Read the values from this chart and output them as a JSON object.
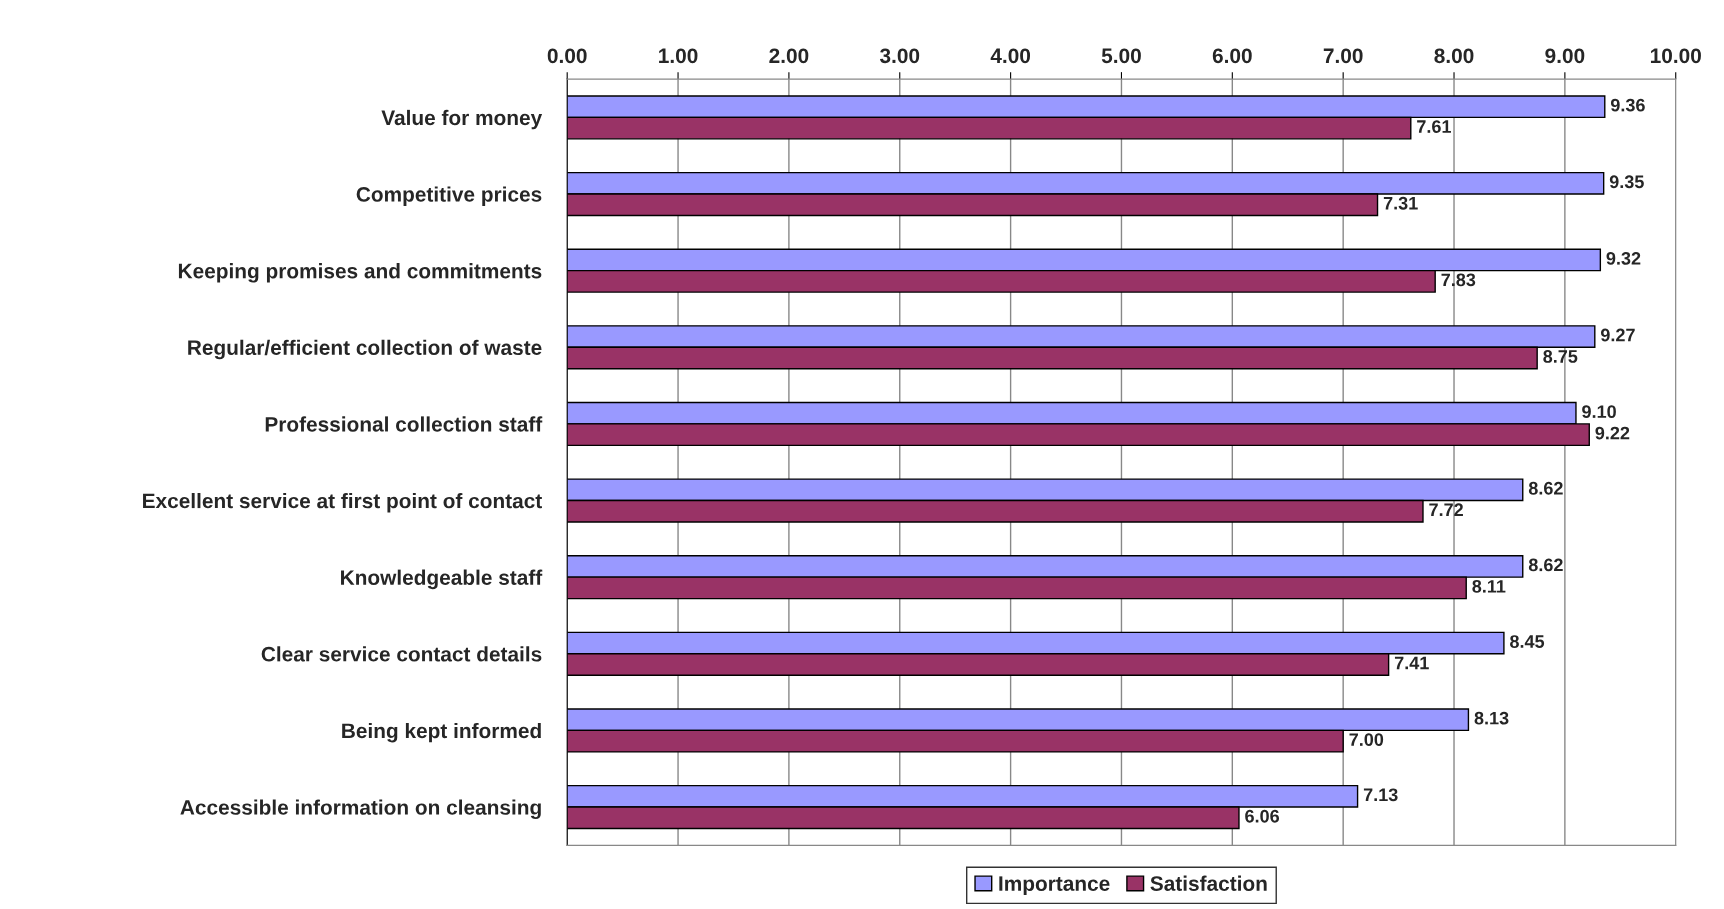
{
  "chart_data": {
    "type": "bar",
    "orientation": "horizontal",
    "categories": [
      "Value for money",
      "Competitive prices",
      "Keeping promises and commitments",
      "Regular/efficient collection of waste",
      "Professional collection staff",
      "Excellent service at first point of contact",
      "Knowledgeable staff",
      "Clear service contact details",
      "Being kept informed",
      "Accessible information on cleansing"
    ],
    "series": [
      {
        "name": "Importance",
        "color": "#9999ff",
        "values": [
          9.36,
          9.35,
          9.32,
          9.27,
          9.1,
          8.62,
          8.62,
          8.45,
          8.13,
          7.13
        ],
        "value_labels": [
          "9.36",
          "9.35",
          "9.32",
          "9.27",
          "9.10",
          "8.62",
          "8.62",
          "8.45",
          "8.13",
          "7.13"
        ]
      },
      {
        "name": "Satisfaction",
        "color": "#993366",
        "values": [
          7.61,
          7.31,
          7.83,
          8.75,
          9.22,
          7.72,
          8.11,
          7.41,
          7.0,
          6.06
        ],
        "value_labels": [
          "7.61",
          "7.31",
          "7.83",
          "8.75",
          "9.22",
          "7.72",
          "8.11",
          "7.41",
          "7.00",
          "6.06"
        ]
      }
    ],
    "xlim": [
      0,
      10
    ],
    "xticks": [
      {
        "value": 0,
        "label": "0.00"
      },
      {
        "value": 1,
        "label": "1.00"
      },
      {
        "value": 2,
        "label": "2.00"
      },
      {
        "value": 3,
        "label": "3.00"
      },
      {
        "value": 4,
        "label": "4.00"
      },
      {
        "value": 5,
        "label": "5.00"
      },
      {
        "value": 6,
        "label": "6.00"
      },
      {
        "value": 7,
        "label": "7.00"
      },
      {
        "value": 8,
        "label": "8.00"
      },
      {
        "value": 9,
        "label": "9.00"
      },
      {
        "value": 10,
        "label": "10.00"
      }
    ],
    "grid": "x",
    "legend": "bottom"
  }
}
